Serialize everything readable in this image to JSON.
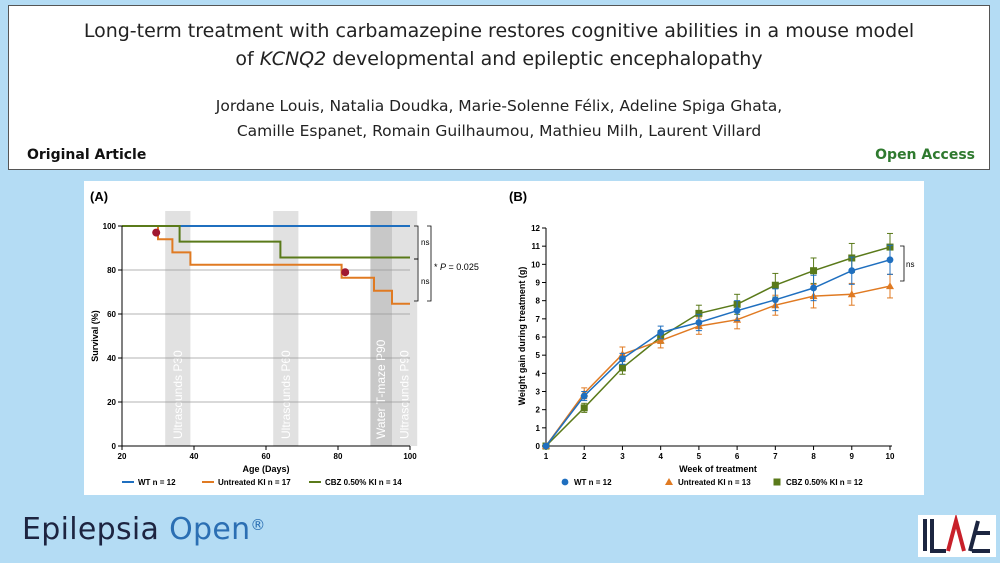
{
  "header": {
    "title_line1": "Long-term treatment with carbamazepine restores cognitive abilities in a mouse model",
    "title_line2_pre": "of ",
    "title_line2_gene": "KCNQ2",
    "title_line2_post": " developmental and epileptic encephalopathy",
    "authors_line1": "Jordane Louis, Natalia Doudka, Marie-Solenne Félix, Adeline Spiga Ghata,",
    "authors_line2": "Camille Espanet, Romain Guilhaumou, Mathieu Milh, Laurent Villard",
    "article_type": "Original Article",
    "access": "Open Access"
  },
  "footer": {
    "journal_name_1": "Epilepsia",
    "journal_name_2": "Open",
    "registered": "®",
    "logo_text": "ILAE"
  },
  "colors": {
    "wt": "#1f6fbf",
    "ki": "#e07a22",
    "cbz": "#5a7a1a",
    "event_dot": "#a01830"
  },
  "chart_data": [
    {
      "panel_label": "(A)",
      "type": "line",
      "subtype": "kaplan-meier",
      "xlabel": "Age (Days)",
      "ylabel": "Survival (%)",
      "xlim": [
        20,
        100
      ],
      "ylim": [
        0,
        100
      ],
      "xticks": [
        20,
        40,
        60,
        80,
        100
      ],
      "yticks": [
        0,
        20,
        40,
        60,
        80,
        100
      ],
      "gridlines_y": true,
      "series": [
        {
          "name": "WT  n = 12",
          "key": "wt",
          "steps": [
            [
              20,
              100
            ],
            [
              100,
              100
            ]
          ]
        },
        {
          "name": "Untreated KI  n = 17",
          "key": "ki",
          "steps": [
            [
              20,
              100
            ],
            [
              30,
              100
            ],
            [
              30,
              94
            ],
            [
              34,
              94
            ],
            [
              34,
              88
            ],
            [
              39,
              88
            ],
            [
              39,
              82.4
            ],
            [
              81,
              82.4
            ],
            [
              81,
              76.5
            ],
            [
              90,
              76.5
            ],
            [
              90,
              70.6
            ],
            [
              95,
              70.6
            ],
            [
              95,
              64.7
            ],
            [
              100,
              64.7
            ]
          ]
        },
        {
          "name": "CBZ 0.50% KI  n = 14",
          "key": "cbz",
          "steps": [
            [
              20,
              100
            ],
            [
              36,
              100
            ],
            [
              36,
              92.9
            ],
            [
              64,
              92.9
            ],
            [
              64,
              85.7
            ],
            [
              100,
              85.7
            ]
          ]
        }
      ],
      "event_dots": [
        [
          29.5,
          97
        ],
        [
          82,
          79
        ]
      ],
      "shaded_periods": [
        {
          "label": "Ultrasounds P30",
          "from": 32,
          "to": 39
        },
        {
          "label": "Ultrasounds P60",
          "from": 62,
          "to": 69
        },
        {
          "label": "Water T-maze P90",
          "from": 89,
          "to": 95
        },
        {
          "label": "Ultrasounds P90",
          "from": 95,
          "to": 102
        }
      ],
      "annotations": {
        "ns_top": "ns",
        "ns_bottom": "ns",
        "star": "*",
        "p_label": "P",
        "p_value": " = 0.025"
      }
    },
    {
      "panel_label": "(B)",
      "type": "line",
      "xlabel": "Week of treatment",
      "ylabel": "Weight gain during treatment (g)",
      "xlim": [
        1,
        10
      ],
      "ylim": [
        0,
        12
      ],
      "x": [
        1,
        2,
        3,
        4,
        5,
        6,
        7,
        8,
        9,
        10
      ],
      "yticks": [
        0,
        1,
        2,
        3,
        4,
        5,
        6,
        7,
        8,
        9,
        10,
        11,
        12
      ],
      "series": [
        {
          "name": "WT  n = 12",
          "key": "wt",
          "marker": "circle",
          "values": [
            0,
            2.75,
            4.8,
            6.25,
            6.8,
            7.45,
            8.05,
            8.7,
            9.65,
            10.25
          ],
          "err": [
            0,
            0.25,
            0.3,
            0.35,
            0.45,
            0.55,
            0.6,
            0.7,
            0.75,
            0.8
          ]
        },
        {
          "name": "Untreated KI  n = 13",
          "key": "ki",
          "marker": "triangle",
          "values": [
            0,
            2.9,
            5.05,
            5.8,
            6.6,
            6.95,
            7.75,
            8.25,
            8.35,
            8.8
          ],
          "err": [
            0,
            0.3,
            0.4,
            0.4,
            0.45,
            0.5,
            0.55,
            0.65,
            0.6,
            0.65
          ]
        },
        {
          "name": "CBZ 0.50% KI  n = 12",
          "key": "cbz",
          "marker": "square",
          "values": [
            0,
            2.1,
            4.3,
            6.0,
            7.3,
            7.8,
            8.85,
            9.65,
            10.35,
            10.95
          ],
          "err": [
            0,
            0.25,
            0.35,
            0.35,
            0.45,
            0.55,
            0.65,
            0.7,
            0.8,
            0.75
          ]
        }
      ],
      "annotations": {
        "ns": "ns"
      }
    }
  ]
}
